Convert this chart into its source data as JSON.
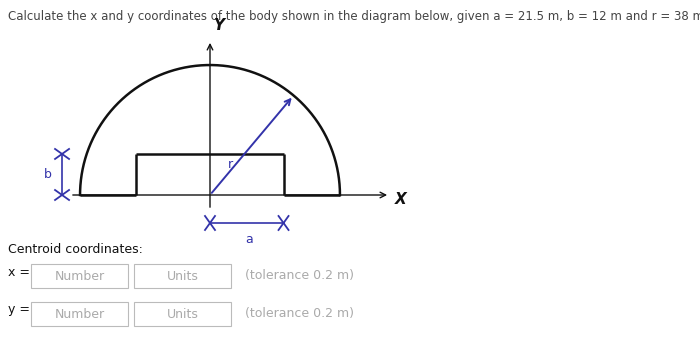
{
  "title": "Calculate the x and y coordinates of the body shown in the diagram below, given a = 21.5 m, b = 12 m and r = 38 m.",
  "title_color": "#444444",
  "title_fontsize": 8.5,
  "diagram_color": "#111111",
  "blue_color": "#3333aa",
  "centroid_label": "Centroid coordinates:",
  "x_label": "x =",
  "y_label": "y =",
  "placeholder_number": "Number",
  "placeholder_units": "Units",
  "tolerance_x": "(tolerance 0.2 m)",
  "tolerance_y": "(tolerance 0.2 m)",
  "box_edge_color": "#bbbbbb",
  "placeholder_color": "#aaaaaa",
  "background_color": "#ffffff"
}
